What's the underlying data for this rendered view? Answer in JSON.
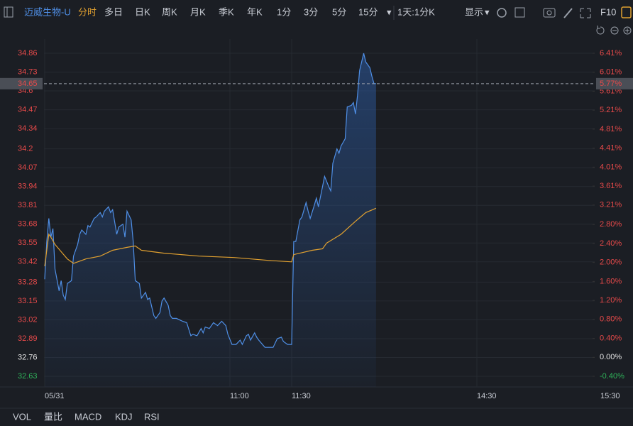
{
  "toolbar": {
    "stock": "迈威生物-U",
    "tabs": [
      "分时",
      "多日",
      "日K",
      "周K",
      "月K",
      "季K",
      "年K",
      "1分",
      "3分",
      "5分",
      "15分"
    ],
    "period": "1天:1分K",
    "display": "显示",
    "f10": "F10"
  },
  "indicators": [
    "VOL",
    "量比",
    "MACD",
    "KDJ",
    "RSI"
  ],
  "chart_data": {
    "type": "line",
    "series": [
      {
        "color": "#4f8fe6",
        "area": true,
        "x": [
          0,
          1,
          2,
          3,
          4,
          5,
          7,
          8,
          9,
          10,
          11,
          13,
          14,
          16,
          17,
          18,
          20,
          21,
          22,
          24,
          25,
          27,
          28,
          29,
          31,
          32,
          33,
          35,
          36,
          38,
          39,
          40,
          42,
          43,
          44,
          46,
          47,
          49,
          50,
          51,
          53,
          54,
          56,
          57,
          58,
          60,
          61,
          62,
          64,
          67,
          69,
          71,
          72,
          74,
          76,
          77,
          78,
          80,
          82,
          84,
          86,
          88,
          89,
          91,
          93,
          95,
          96,
          98,
          99,
          100,
          102,
          103,
          104,
          107,
          109,
          111,
          113,
          115,
          116,
          118,
          120,
          121,
          122,
          124,
          125,
          127,
          128,
          129,
          131,
          132,
          133,
          135,
          136,
          138,
          139,
          140,
          142,
          143,
          144,
          146,
          147,
          149,
          150,
          151,
          152,
          153,
          155,
          156,
          158,
          159,
          160,
          161
        ],
        "values": [
          33.3,
          33.56,
          33.72,
          33.59,
          33.65,
          33.37,
          33.22,
          33.29,
          33.19,
          33.16,
          33.27,
          33.29,
          33.46,
          33.54,
          33.61,
          33.64,
          33.61,
          33.67,
          33.66,
          33.72,
          33.73,
          33.76,
          33.73,
          33.77,
          33.8,
          33.76,
          33.78,
          33.61,
          33.66,
          33.68,
          33.59,
          33.77,
          33.71,
          33.56,
          33.29,
          33.27,
          33.17,
          33.21,
          33.16,
          33.17,
          33.05,
          33.03,
          33.07,
          33.15,
          33.17,
          33.12,
          33.05,
          33.03,
          33.03,
          33.01,
          33.0,
          32.91,
          32.92,
          32.91,
          32.96,
          32.93,
          32.97,
          32.96,
          33.0,
          32.98,
          33.01,
          32.98,
          32.92,
          32.85,
          32.85,
          32.88,
          32.85,
          32.91,
          32.92,
          32.88,
          32.93,
          32.9,
          32.88,
          32.83,
          32.83,
          32.83,
          32.89,
          32.9,
          32.87,
          32.85,
          32.85,
          33.56,
          33.56,
          33.71,
          33.73,
          33.83,
          33.77,
          33.72,
          33.81,
          33.86,
          33.8,
          33.94,
          34.01,
          33.94,
          33.91,
          34.1,
          34.2,
          34.17,
          34.22,
          34.27,
          34.49,
          34.5,
          34.52,
          34.44,
          34.57,
          34.74,
          34.86,
          34.8,
          34.76,
          34.7,
          34.65,
          34.65
        ]
      },
      {
        "color": "#e0a030",
        "area": false,
        "x": [
          0,
          2,
          3,
          5,
          8,
          11,
          14,
          20,
          27,
          33,
          40,
          44,
          47,
          58,
          75,
          92,
          109,
          120,
          121,
          130,
          135,
          137,
          144,
          151,
          156,
          161
        ],
        "values": [
          33.39,
          33.61,
          33.59,
          33.54,
          33.49,
          33.44,
          33.41,
          33.44,
          33.46,
          33.5,
          33.52,
          33.53,
          33.5,
          33.48,
          33.46,
          33.45,
          33.43,
          33.42,
          33.47,
          33.5,
          33.51,
          33.55,
          33.61,
          33.7,
          33.76,
          33.79
        ]
      }
    ],
    "xlim": [
      0,
      267
    ],
    "xticks": [
      {
        "value": 0,
        "label": "05/31"
      },
      {
        "value": 90,
        "label": "11:00"
      },
      {
        "value": 120,
        "label": "11:30"
      },
      {
        "value": 210,
        "label": "14:30"
      },
      {
        "value": 270,
        "label": "15:30"
      }
    ],
    "ylim": [
      32.63,
      34.86
    ],
    "yticks": [
      34.86,
      34.73,
      34.6,
      34.47,
      34.34,
      34.2,
      34.07,
      33.94,
      33.81,
      33.68,
      33.55,
      33.42,
      33.28,
      33.15,
      33.02,
      32.89,
      32.76,
      32.63
    ],
    "y2lim": [
      -0.4,
      6.41
    ],
    "y2ticks": [
      {
        "value": 6.41,
        "label": "6.41%"
      },
      {
        "value": 6.01,
        "label": "6.01%"
      },
      {
        "value": 5.61,
        "label": "5.61%"
      },
      {
        "value": 5.21,
        "label": "5.21%"
      },
      {
        "value": 4.81,
        "label": "4.81%"
      },
      {
        "value": 4.41,
        "label": "4.41%"
      },
      {
        "value": 4.01,
        "label": "4.01%"
      },
      {
        "value": 3.61,
        "label": "3.61%"
      },
      {
        "value": 3.21,
        "label": "3.21%"
      },
      {
        "value": 2.8,
        "label": "2.80%"
      },
      {
        "value": 2.4,
        "label": "2.40%"
      },
      {
        "value": 2.0,
        "label": "2.00%"
      },
      {
        "value": 1.6,
        "label": "1.60%"
      },
      {
        "value": 1.2,
        "label": "1.20%"
      },
      {
        "value": 0.8,
        "label": "0.80%"
      },
      {
        "value": 0.4,
        "label": "0.40%"
      },
      {
        "value": 0.0,
        "label": "0.00%"
      },
      {
        "value": -0.4,
        "label": "-0.40%"
      }
    ],
    "last_price": 34.65,
    "last_change": {
      "value": 5.77,
      "label": "5.77%"
    },
    "grid": true
  }
}
